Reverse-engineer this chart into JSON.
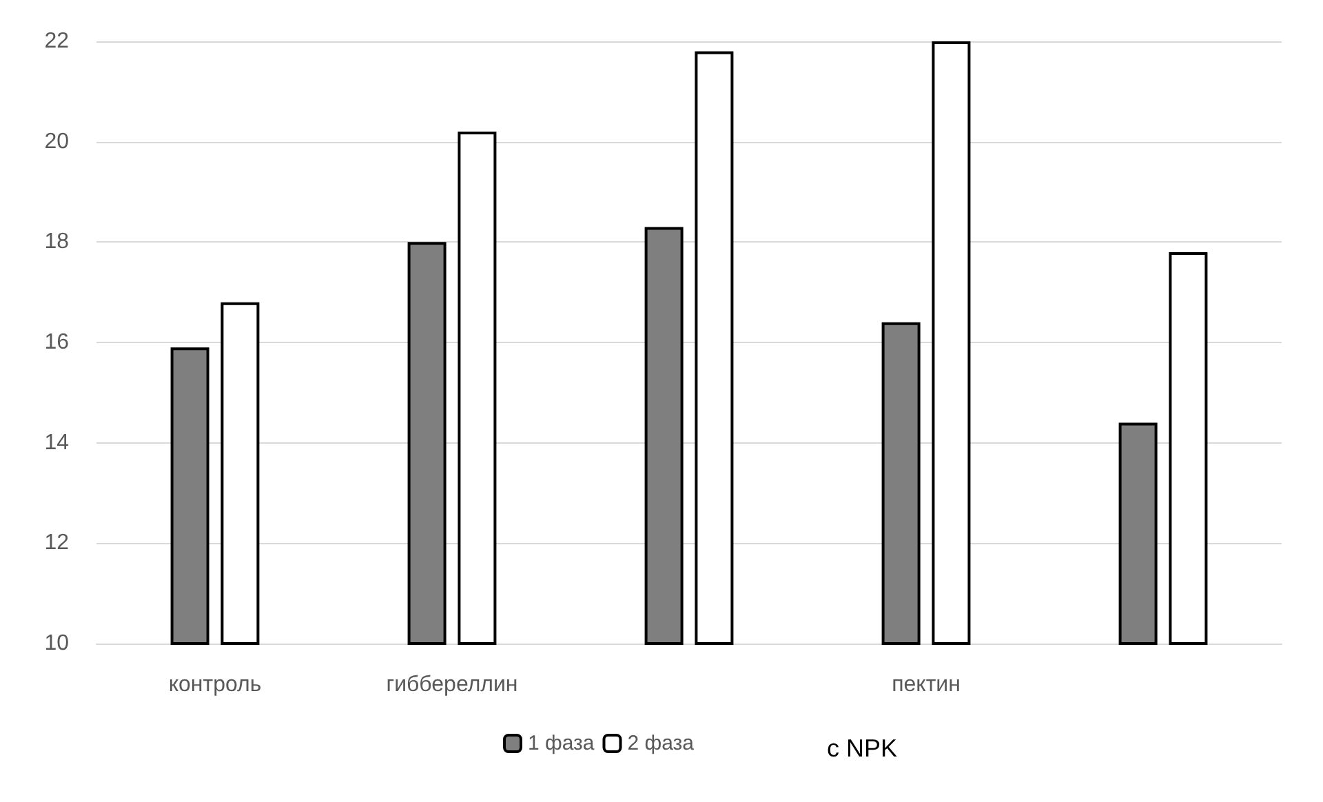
{
  "chart_data": {
    "type": "bar",
    "categories": [
      "контроль",
      "гиббереллин",
      null,
      "пектин",
      null
    ],
    "series": [
      {
        "name": "1 фаза",
        "color": "#7f7f7f",
        "values": [
          15.9,
          18.0,
          18.3,
          16.4,
          14.4
        ]
      },
      {
        "name": "2 фаза",
        "color": "#ffffff",
        "values": [
          16.8,
          20.2,
          21.8,
          22.0,
          17.8
        ]
      }
    ],
    "ylim": [
      10,
      22
    ],
    "yticks": [
      10,
      12,
      14,
      16,
      18,
      20,
      22
    ],
    "grid": "y",
    "legend": "bottom",
    "annotations": [
      "с NPK"
    ]
  }
}
